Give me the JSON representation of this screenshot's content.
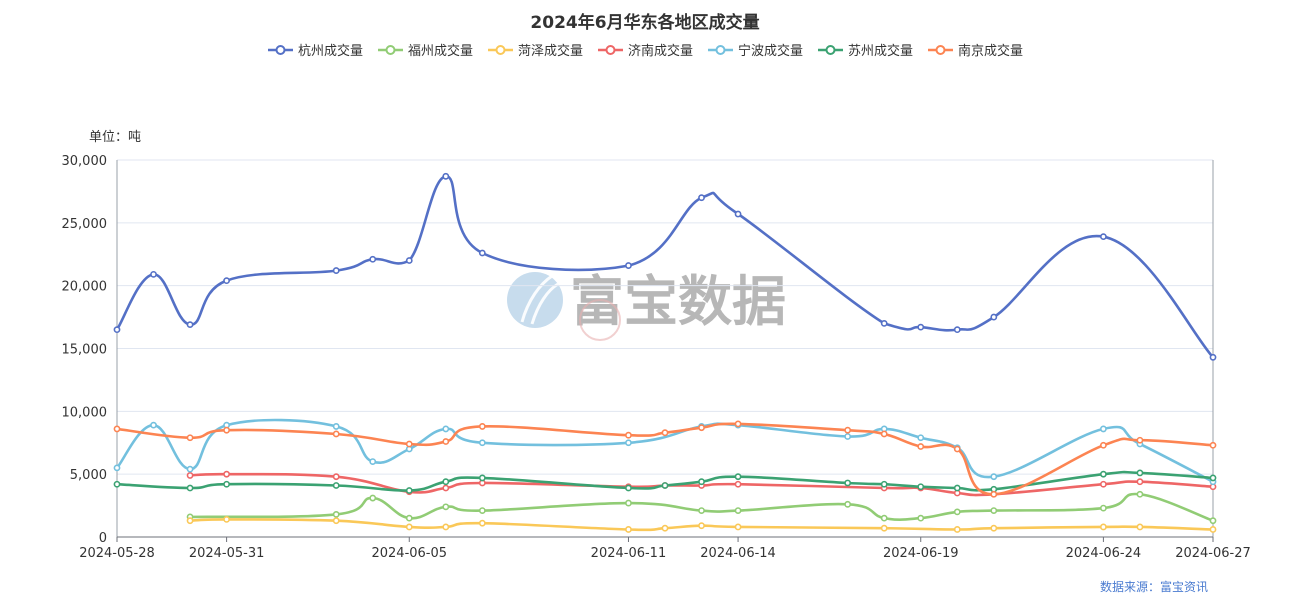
{
  "chart_data": {
    "type": "line",
    "title": "2024年6月华东各地区成交量",
    "unit_label": "单位：吨",
    "source_label": "数据来源：富宝资讯",
    "watermark": "富宝数据",
    "x_tick_labels": [
      "2024-05-28",
      "2024-05-31",
      "2024-06-05",
      "2024-06-11",
      "2024-06-14",
      "2024-06-19",
      "2024-06-24",
      "2024-06-27"
    ],
    "y_tick_labels": [
      "0",
      "5,000",
      "10,000",
      "15,000",
      "20,000",
      "25,000",
      "30,000"
    ],
    "ylim": [
      0,
      30000
    ],
    "y_ticks": [
      0,
      5000,
      10000,
      15000,
      20000,
      25000,
      30000
    ],
    "legend_position": "top-center",
    "grid": true,
    "dates": [
      "2024-05-28",
      "2024-05-29",
      "2024-05-30",
      "2024-05-31",
      "2024-06-03",
      "2024-06-04",
      "2024-06-05",
      "2024-06-06",
      "2024-06-07",
      "2024-06-11",
      "2024-06-12",
      "2024-06-13",
      "2024-06-14",
      "2024-06-17",
      "2024-06-18",
      "2024-06-19",
      "2024-06-20",
      "2024-06-21",
      "2024-06-24",
      "2024-06-25",
      "2024-06-26",
      "2024-06-27"
    ],
    "series": [
      {
        "name": "杭州成交量",
        "color": "#5470c6",
        "values": [
          16500,
          20900,
          16900,
          20400,
          21200,
          22100,
          22000,
          28700,
          22600,
          21600,
          null,
          27000,
          25700,
          null,
          17000,
          16700,
          16500,
          17500,
          23900,
          null,
          null,
          14300
        ]
      },
      {
        "name": "福州成交量",
        "color": "#91cc75",
        "values": [
          null,
          null,
          1600,
          null,
          1800,
          3100,
          1500,
          2400,
          2100,
          2700,
          null,
          2100,
          2100,
          2600,
          1500,
          1500,
          2000,
          2100,
          2300,
          3400,
          null,
          1300
        ]
      },
      {
        "name": "菏泽成交量",
        "color": "#fac858",
        "values": [
          null,
          null,
          1300,
          1400,
          1300,
          null,
          800,
          800,
          1100,
          600,
          700,
          900,
          800,
          null,
          700,
          null,
          600,
          700,
          800,
          800,
          null,
          600
        ]
      },
      {
        "name": "济南成交量",
        "color": "#ee6666",
        "values": [
          null,
          null,
          4900,
          5000,
          4800,
          null,
          3600,
          3900,
          4300,
          4000,
          4100,
          4100,
          4200,
          null,
          3900,
          3900,
          3500,
          3400,
          4200,
          4400,
          null,
          4000
        ]
      },
      {
        "name": "宁波成交量",
        "color": "#73c0de",
        "values": [
          5500,
          8900,
          5400,
          8900,
          8800,
          6000,
          7000,
          8600,
          7500,
          7500,
          null,
          8800,
          8900,
          8000,
          8600,
          7900,
          7100,
          4800,
          8600,
          7400,
          null,
          4400
        ]
      },
      {
        "name": "苏州成交量",
        "color": "#3ba272",
        "values": [
          4200,
          null,
          3900,
          4200,
          4100,
          null,
          3700,
          4400,
          4700,
          3900,
          4100,
          4400,
          4800,
          4300,
          4200,
          4000,
          3900,
          3800,
          5000,
          5100,
          null,
          4700
        ]
      },
      {
        "name": "南京成交量",
        "color": "#fc8452",
        "values": [
          8600,
          null,
          7900,
          8500,
          8200,
          null,
          7400,
          7600,
          8800,
          8100,
          8300,
          8700,
          9000,
          8500,
          8200,
          7200,
          7000,
          3400,
          7300,
          7700,
          null,
          7300
        ]
      }
    ]
  }
}
